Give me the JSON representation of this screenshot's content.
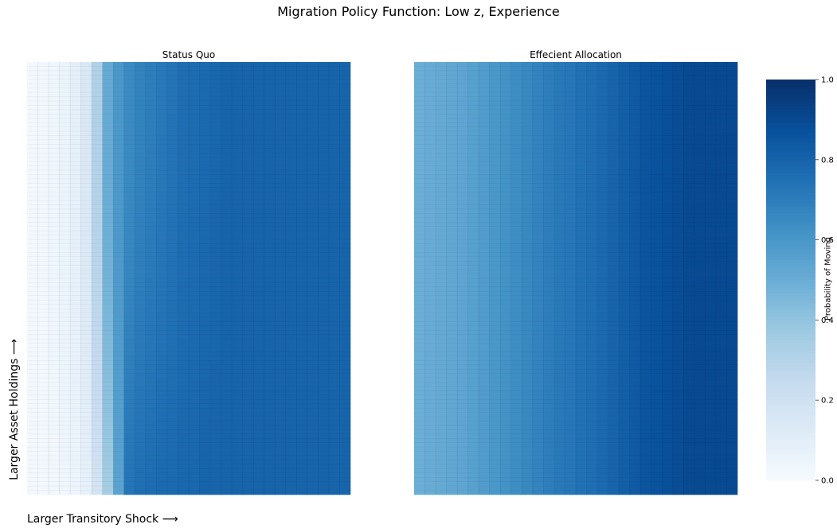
{
  "figure": {
    "title": "Migration Policy Function: Low z, Experience",
    "xlabel": "Larger Transitory Shock ⟶",
    "ylabel": "Larger Asset Holdings ⟶"
  },
  "colorbar": {
    "label": "Probability of Moving",
    "ticks": [
      "0.0",
      "0.2",
      "0.4",
      "0.6",
      "0.8",
      "1.0"
    ],
    "tick_values": [
      0,
      0.2,
      0.4,
      0.6,
      0.8,
      1.0
    ],
    "colormap": "Blues",
    "range": [
      0,
      1
    ]
  },
  "chart_data": [
    {
      "type": "heatmap",
      "title": "Status Quo",
      "xlabel": "Larger Transitory Shock ⟶",
      "ylabel": "Larger Asset Holdings ⟶",
      "n_cols": 30,
      "n_rows": 100,
      "column_values": [
        0.02,
        0.03,
        0.04,
        0.06,
        0.09,
        0.15,
        0.32,
        0.52,
        0.6,
        0.65,
        0.68,
        0.7,
        0.72,
        0.74,
        0.76,
        0.77,
        0.78,
        0.79,
        0.8,
        0.8,
        0.8,
        0.8,
        0.8,
        0.8,
        0.8,
        0.8,
        0.8,
        0.8,
        0.8,
        0.8
      ],
      "column_values_bottom": [
        0.02,
        0.02,
        0.03,
        0.04,
        0.05,
        0.08,
        0.18,
        0.35,
        0.55,
        0.74,
        0.76,
        0.77,
        0.78,
        0.78,
        0.79,
        0.79,
        0.8,
        0.8,
        0.8,
        0.8,
        0.8,
        0.8,
        0.8,
        0.8,
        0.8,
        0.8,
        0.8,
        0.8,
        0.8,
        0.8
      ],
      "zlim": [
        0,
        1
      ]
    },
    {
      "type": "heatmap",
      "title": "Effecient Allocation",
      "n_cols": 30,
      "n_rows": 100,
      "column_values": [
        0.5,
        0.51,
        0.52,
        0.53,
        0.54,
        0.56,
        0.58,
        0.6,
        0.62,
        0.64,
        0.66,
        0.68,
        0.7,
        0.72,
        0.73,
        0.75,
        0.76,
        0.78,
        0.8,
        0.82,
        0.84,
        0.86,
        0.87,
        0.88,
        0.89,
        0.9,
        0.9,
        0.9,
        0.9,
        0.9
      ],
      "zlim": [
        0,
        1
      ]
    }
  ]
}
